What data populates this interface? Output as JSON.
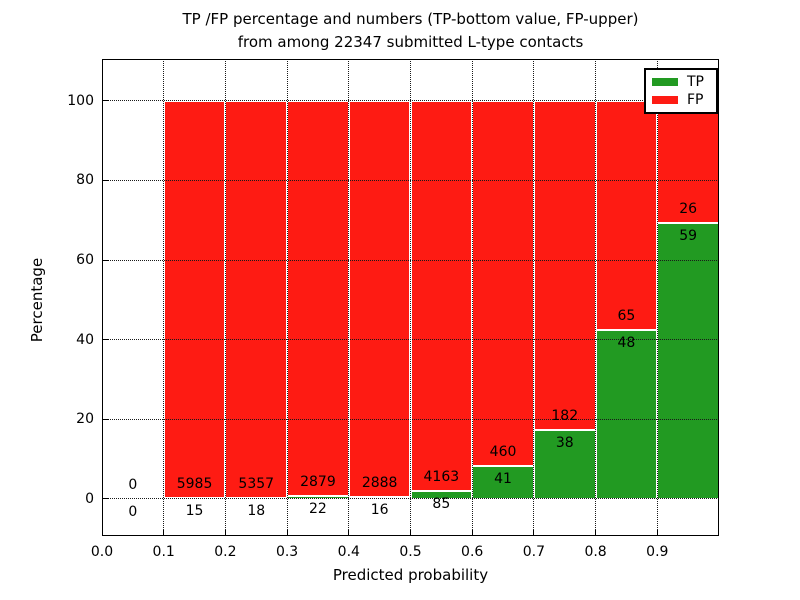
{
  "figure": {
    "title_line1": "TP /FP percentage and numbers (TP-bottom value, FP-upper)",
    "title_line2": "from among 22347 submitted L-type contacts",
    "xlabel": "Predicted probability",
    "ylabel": "Percentage"
  },
  "legend": {
    "items": [
      {
        "label": "TP",
        "color": "#229a22"
      },
      {
        "label": "FP",
        "color": "#fe1b13"
      }
    ]
  },
  "chart_data": {
    "type": "bar",
    "stacking": "percent",
    "title": "TP /FP percentage and numbers (TP-bottom value, FP-upper) from among 22347 submitted L-type contacts",
    "xlabel": "Predicted probability",
    "ylabel": "Percentage",
    "total_contacts": 22347,
    "xlim": [
      0.0,
      1.0
    ],
    "ylim": [
      -9.3,
      110.5
    ],
    "x_ticks": [
      "0.0",
      "0.1",
      "0.2",
      "0.3",
      "0.4",
      "0.5",
      "0.6",
      "0.7",
      "0.8",
      "0.9"
    ],
    "y_ticks": [
      0,
      20,
      40,
      60,
      80,
      100
    ],
    "grid": true,
    "grid_style": "dotted",
    "legend_position": "upper right",
    "series": [
      {
        "name": "TP",
        "color": "#229a22",
        "position": "bottom"
      },
      {
        "name": "FP",
        "color": "#fe1b13",
        "position": "top"
      }
    ],
    "bins": [
      {
        "x_start": 0.0,
        "x_end": 0.1,
        "tp": 0,
        "fp": 0
      },
      {
        "x_start": 0.1,
        "x_end": 0.2,
        "tp": 15,
        "fp": 5985
      },
      {
        "x_start": 0.2,
        "x_end": 0.3,
        "tp": 18,
        "fp": 5357
      },
      {
        "x_start": 0.3,
        "x_end": 0.4,
        "tp": 22,
        "fp": 2879
      },
      {
        "x_start": 0.4,
        "x_end": 0.5,
        "tp": 16,
        "fp": 2888
      },
      {
        "x_start": 0.5,
        "x_end": 0.6,
        "tp": 85,
        "fp": 4163
      },
      {
        "x_start": 0.6,
        "x_end": 0.7,
        "tp": 41,
        "fp": 460
      },
      {
        "x_start": 0.7,
        "x_end": 0.8,
        "tp": 38,
        "fp": 182
      },
      {
        "x_start": 0.8,
        "x_end": 0.9,
        "tp": 48,
        "fp": 65
      },
      {
        "x_start": 0.9,
        "x_end": 1.0,
        "tp": 59,
        "fp": 26
      }
    ]
  }
}
